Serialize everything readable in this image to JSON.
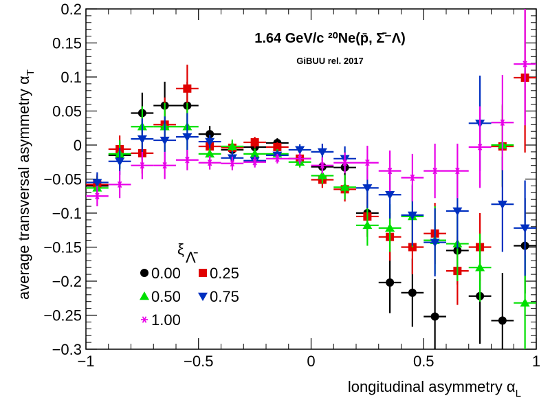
{
  "chart_data": {
    "type": "scatter",
    "title": "1.64 GeV/c  ²⁰Ne(p̄, Σ̄⁻Λ)",
    "subtitle": "GiBUU rel. 2017",
    "xlabel": "longitudinal asymmetry α",
    "xlabel_sub": "L",
    "ylabel": "average transversal asymmetry α",
    "ylabel_sub": "T",
    "xlim": [
      -1,
      1
    ],
    "ylim": [
      -0.3,
      0.2
    ],
    "x_ticks": [
      "−1",
      "−0.5",
      "0",
      "0.5",
      "1"
    ],
    "y_ticks": [
      "0.2",
      "0.15",
      "0.1",
      "0.05",
      "0",
      "−0.05",
      "−0.1",
      "−0.15",
      "−0.2",
      "−0.25",
      "−0.3"
    ],
    "grid": false,
    "legend_title": "ξ",
    "legend_title_sub": "Λ̄",
    "legend_position": "bottom-left",
    "x_bin_half_width": 0.05,
    "series": [
      {
        "name": "0.00",
        "color": "#000000",
        "marker": "circle",
        "x": [
          -0.95,
          -0.85,
          -0.75,
          -0.65,
          -0.55,
          -0.45,
          -0.35,
          -0.25,
          -0.15,
          -0.05,
          0.05,
          0.15,
          0.25,
          0.35,
          0.45,
          0.55,
          0.65,
          0.75,
          0.85,
          0.95
        ],
        "y": [
          -0.06,
          -0.015,
          0.047,
          0.058,
          0.058,
          0.016,
          -0.007,
          -0.003,
          0.003,
          -0.02,
          -0.032,
          -0.033,
          -0.1,
          -0.202,
          -0.217,
          -0.252,
          -0.155,
          -0.222,
          -0.258,
          -0.148
        ],
        "err": [
          0.015,
          0.02,
          0.03,
          0.035,
          0.035,
          0.012,
          0.01,
          0.008,
          0.007,
          0.008,
          0.012,
          0.018,
          0.035,
          0.045,
          0.05,
          0.055,
          0.05,
          0.07,
          0.07,
          0.07
        ]
      },
      {
        "name": "0.25",
        "color": "#e00000",
        "marker": "square",
        "x": [
          -0.95,
          -0.85,
          -0.75,
          -0.65,
          -0.55,
          -0.45,
          -0.35,
          -0.25,
          -0.15,
          -0.05,
          0.05,
          0.15,
          0.25,
          0.35,
          0.45,
          0.55,
          0.65,
          0.75,
          0.85,
          0.95
        ],
        "y": [
          -0.058,
          -0.006,
          -0.012,
          0.03,
          0.083,
          -0.002,
          -0.004,
          0.004,
          -0.003,
          -0.02,
          -0.051,
          -0.065,
          -0.105,
          -0.135,
          -0.15,
          -0.13,
          -0.185,
          -0.15,
          -0.002,
          0.099
        ],
        "err": [
          0.015,
          0.02,
          0.03,
          0.04,
          0.035,
          0.01,
          0.01,
          0.008,
          0.007,
          0.008,
          0.012,
          0.018,
          0.03,
          0.035,
          0.04,
          0.045,
          0.05,
          0.05,
          0.06,
          0.11
        ]
      },
      {
        "name": "0.50",
        "color": "#00e000",
        "marker": "triangle-up",
        "x": [
          -0.95,
          -0.85,
          -0.75,
          -0.65,
          -0.55,
          -0.45,
          -0.35,
          -0.25,
          -0.15,
          -0.05,
          0.05,
          0.15,
          0.25,
          0.35,
          0.45,
          0.55,
          0.65,
          0.75,
          0.85,
          0.95
        ],
        "y": [
          -0.063,
          -0.013,
          0.027,
          0.027,
          0.027,
          -0.013,
          -0.002,
          -0.013,
          -0.013,
          -0.025,
          -0.045,
          -0.062,
          -0.118,
          -0.122,
          -0.105,
          -0.14,
          -0.145,
          -0.18,
          0.0,
          -0.232
        ],
        "err": [
          0.015,
          0.02,
          0.03,
          0.035,
          0.035,
          0.01,
          0.01,
          0.008,
          0.007,
          0.008,
          0.012,
          0.018,
          0.03,
          0.035,
          0.045,
          0.05,
          0.055,
          0.05,
          0.06,
          0.07
        ]
      },
      {
        "name": "0.75",
        "color": "#0030c0",
        "marker": "triangle-down",
        "x": [
          -0.95,
          -0.85,
          -0.75,
          -0.65,
          -0.55,
          -0.45,
          -0.35,
          -0.25,
          -0.15,
          -0.05,
          0.05,
          0.15,
          0.25,
          0.35,
          0.45,
          0.55,
          0.65,
          0.75,
          0.85,
          0.95
        ],
        "y": [
          -0.055,
          -0.024,
          0.009,
          0.007,
          0.012,
          0.005,
          -0.019,
          -0.023,
          -0.015,
          -0.007,
          -0.01,
          -0.02,
          -0.063,
          -0.073,
          -0.103,
          -0.143,
          -0.097,
          0.032,
          -0.087,
          -0.122
        ],
        "err": [
          0.015,
          0.02,
          0.03,
          0.035,
          0.035,
          0.01,
          0.01,
          0.008,
          0.007,
          0.008,
          0.012,
          0.018,
          0.03,
          0.035,
          0.045,
          0.05,
          0.055,
          0.07,
          0.07,
          0.07
        ]
      },
      {
        "name": "1.00",
        "color": "#e800e8",
        "marker": "star",
        "x": [
          -0.95,
          -0.85,
          -0.75,
          -0.65,
          -0.55,
          -0.45,
          -0.35,
          -0.25,
          -0.15,
          -0.05,
          0.05,
          0.15,
          0.25,
          0.35,
          0.45,
          0.55,
          0.65,
          0.75,
          0.85,
          0.95
        ],
        "y": [
          -0.075,
          -0.058,
          -0.03,
          -0.03,
          -0.022,
          -0.026,
          -0.027,
          -0.025,
          -0.02,
          -0.02,
          -0.03,
          -0.026,
          -0.026,
          -0.038,
          -0.048,
          -0.038,
          -0.038,
          -0.003,
          0.033,
          0.119
        ],
        "err": [
          0.015,
          0.02,
          0.02,
          0.02,
          0.015,
          0.01,
          0.01,
          0.008,
          0.007,
          0.008,
          0.012,
          0.015,
          0.025,
          0.03,
          0.035,
          0.04,
          0.04,
          0.06,
          0.07,
          0.09
        ]
      }
    ]
  }
}
